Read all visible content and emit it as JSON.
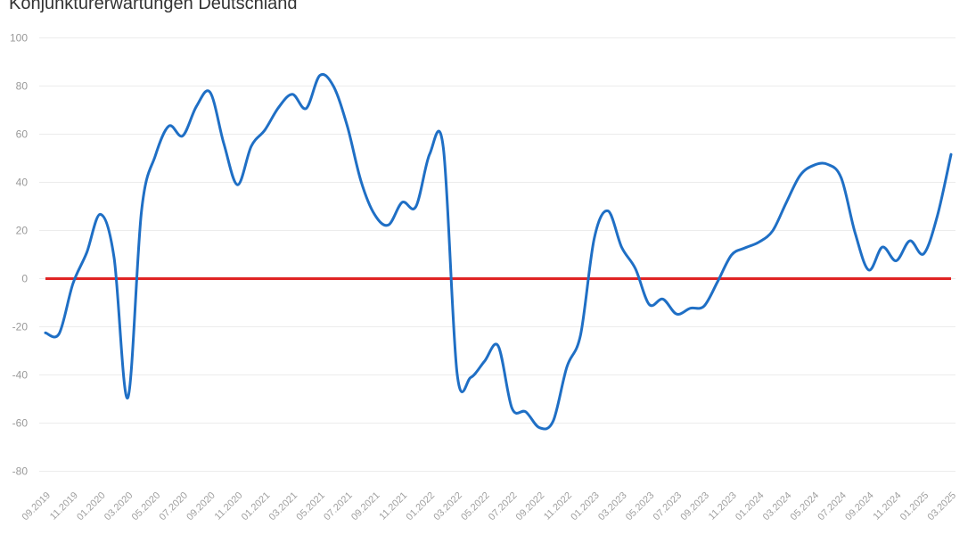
{
  "title": "Konjunkturerwartungen Deutschland",
  "colors": {
    "series": "#1f6fc5",
    "zero_line": "#e02424",
    "grid": "#ececec"
  },
  "chart_data": {
    "type": "line",
    "title": "Konjunkturerwartungen Deutschland",
    "xlabel": "",
    "ylabel": "",
    "ylim": [
      -85,
      100
    ],
    "yticks": [
      100,
      80,
      60,
      40,
      20,
      0,
      -20,
      -40,
      -60,
      -80
    ],
    "grid": true,
    "x_tick_labels": [
      "09.2019",
      "11.2019",
      "01.2020",
      "03.2020",
      "05.2020",
      "07.2020",
      "09.2020",
      "11.2020",
      "01.2021",
      "03.2021",
      "05.2021",
      "07.2021",
      "09.2021",
      "11.2021",
      "01.2022",
      "03.2022",
      "05.2022",
      "07.2022",
      "09.2022",
      "11.2022",
      "01.2023",
      "03.2023",
      "05.2023",
      "07.2023",
      "09.2023",
      "11.2023",
      "01.2024",
      "03.2024",
      "05.2024",
      "07.2024",
      "09.2024",
      "11.2024",
      "01.2025",
      "03.2025"
    ],
    "x": [
      "09.2019",
      "10.2019",
      "11.2019",
      "12.2019",
      "01.2020",
      "02.2020",
      "03.2020",
      "04.2020",
      "05.2020",
      "06.2020",
      "07.2020",
      "08.2020",
      "09.2020",
      "10.2020",
      "11.2020",
      "12.2020",
      "01.2021",
      "02.2021",
      "03.2021",
      "04.2021",
      "05.2021",
      "06.2021",
      "07.2021",
      "08.2021",
      "09.2021",
      "10.2021",
      "11.2021",
      "12.2021",
      "01.2022",
      "02.2022",
      "03.2022",
      "04.2022",
      "05.2022",
      "06.2022",
      "07.2022",
      "08.2022",
      "09.2022",
      "10.2022",
      "11.2022",
      "12.2022",
      "01.2023",
      "02.2023",
      "03.2023",
      "04.2023",
      "05.2023",
      "06.2023",
      "07.2023",
      "08.2023",
      "09.2023",
      "10.2023",
      "11.2023",
      "12.2023",
      "01.2024",
      "02.2024",
      "03.2024",
      "04.2024",
      "05.2024",
      "06.2024",
      "07.2024",
      "08.2024",
      "09.2024",
      "10.2024",
      "11.2024",
      "12.2024",
      "01.2025",
      "02.2025",
      "03.2025"
    ],
    "series": [
      {
        "values": [
          -22.5,
          -22.8,
          -2.1,
          10.7,
          26.7,
          8.7,
          -49.5,
          28.2,
          51.0,
          63.4,
          59.3,
          71.5,
          77.4,
          56.1,
          39.0,
          55.0,
          61.8,
          71.2,
          76.6,
          70.7,
          84.4,
          79.8,
          63.3,
          40.4,
          26.5,
          22.3,
          31.7,
          29.9,
          51.7,
          54.3,
          -39.3,
          -41.0,
          -34.3,
          -28.0,
          -53.8,
          -55.3,
          -61.9,
          -59.2,
          -36.7,
          -23.3,
          16.9,
          28.1,
          13.0,
          4.1,
          -10.7,
          -8.5,
          -14.7,
          -12.3,
          -11.4,
          -1.1,
          9.8,
          12.8,
          15.2,
          19.9,
          31.7,
          42.9,
          47.1,
          47.5,
          41.8,
          19.2,
          3.6,
          13.1,
          7.4,
          15.7,
          10.3,
          26.0,
          51.6
        ]
      }
    ],
    "reference_lines": [
      {
        "y": 0
      }
    ]
  }
}
